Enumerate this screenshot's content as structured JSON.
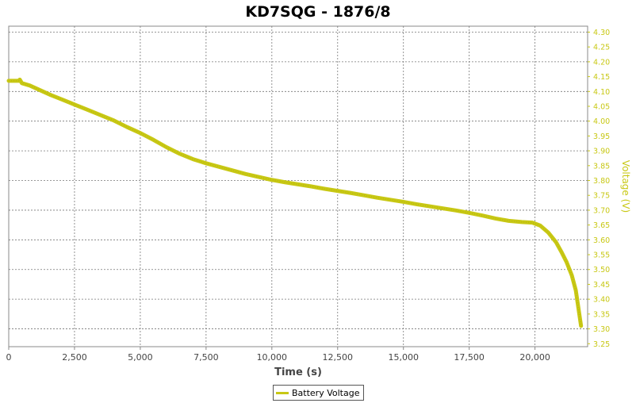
{
  "chart_data": {
    "type": "line",
    "title": "KD7SQG - 1876/8",
    "xlabel": "Time (s)",
    "ylabel": "Voltage (V)",
    "xlim": [
      0,
      22000
    ],
    "ylim": [
      3.24,
      4.32
    ],
    "x_ticks": [
      "0",
      "2,500",
      "5,000",
      "7,500",
      "10,000",
      "12,500",
      "15,000",
      "17,500",
      "20,000"
    ],
    "y_ticks": [
      "3.25",
      "3.30",
      "3.35",
      "3.40",
      "3.45",
      "3.50",
      "3.55",
      "3.60",
      "3.65",
      "3.70",
      "3.75",
      "3.80",
      "3.85",
      "3.90",
      "3.95",
      "4.00",
      "4.05",
      "4.10",
      "4.15",
      "4.20",
      "4.25",
      "4.30"
    ],
    "grid": true,
    "legend_position": "bottom-center",
    "y_axis_side": "right",
    "series": [
      {
        "name": "Battery Voltage",
        "color": "#c8c814",
        "x": [
          0,
          380,
          420,
          500,
          800,
          1200,
          1600,
          2000,
          2500,
          3000,
          3500,
          4000,
          4500,
          5000,
          5500,
          6000,
          6500,
          7000,
          7500,
          8000,
          8500,
          9000,
          9500,
          10000,
          10500,
          11000,
          11500,
          12000,
          12500,
          13000,
          13500,
          14000,
          14500,
          15000,
          15500,
          16000,
          16500,
          17000,
          17500,
          18000,
          18500,
          19000,
          19500,
          19900,
          20200,
          20500,
          20800,
          21000,
          21200,
          21400,
          21550,
          21650,
          21750
        ],
        "y": [
          4.136,
          4.136,
          4.14,
          4.128,
          4.12,
          4.104,
          4.088,
          4.074,
          4.056,
          4.038,
          4.02,
          4.002,
          3.98,
          3.96,
          3.937,
          3.912,
          3.89,
          3.872,
          3.858,
          3.846,
          3.834,
          3.822,
          3.812,
          3.802,
          3.794,
          3.787,
          3.78,
          3.772,
          3.765,
          3.758,
          3.75,
          3.742,
          3.735,
          3.728,
          3.72,
          3.713,
          3.706,
          3.699,
          3.691,
          3.682,
          3.672,
          3.664,
          3.66,
          3.658,
          3.648,
          3.625,
          3.592,
          3.56,
          3.525,
          3.48,
          3.43,
          3.37,
          3.31
        ]
      }
    ]
  }
}
